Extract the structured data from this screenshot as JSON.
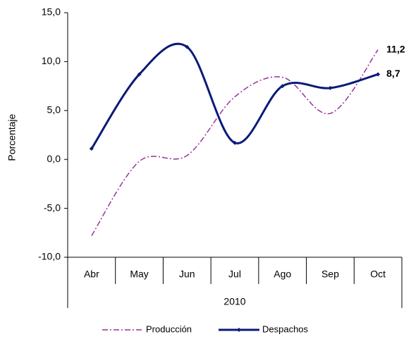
{
  "chart_data": {
    "type": "line",
    "y_label": "Porcentaje",
    "x_group_label": "2010",
    "categories": [
      "Abr",
      "May",
      "Jun",
      "Jul",
      "Ago",
      "Sep",
      "Oct"
    ],
    "series": [
      {
        "name": "Producción",
        "color": "#993399",
        "style": "dash-dot",
        "values": [
          -7.8,
          -0.2,
          0.4,
          6.4,
          8.4,
          4.7,
          11.2
        ],
        "value_labels": [
          null,
          null,
          null,
          null,
          null,
          null,
          "11,2"
        ]
      },
      {
        "name": "Despachos",
        "color": "#0a1a7a",
        "style": "solid",
        "marker": "diamond",
        "values": [
          1.1,
          8.7,
          11.5,
          1.7,
          7.5,
          7.3,
          8.7
        ],
        "value_labels": [
          null,
          null,
          null,
          null,
          null,
          null,
          "8,7"
        ],
        "label_color": "#1f3f6f"
      }
    ],
    "ylim": [
      -10,
      15
    ],
    "yticks": [
      {
        "value": -10,
        "label": "-10,0"
      },
      {
        "value": -5,
        "label": "-5,0"
      },
      {
        "value": 0,
        "label": "0,0"
      },
      {
        "value": 5,
        "label": "5,0"
      },
      {
        "value": 10,
        "label": "10,0"
      },
      {
        "value": 15,
        "label": "15,0"
      }
    ],
    "legend": "bottom"
  }
}
